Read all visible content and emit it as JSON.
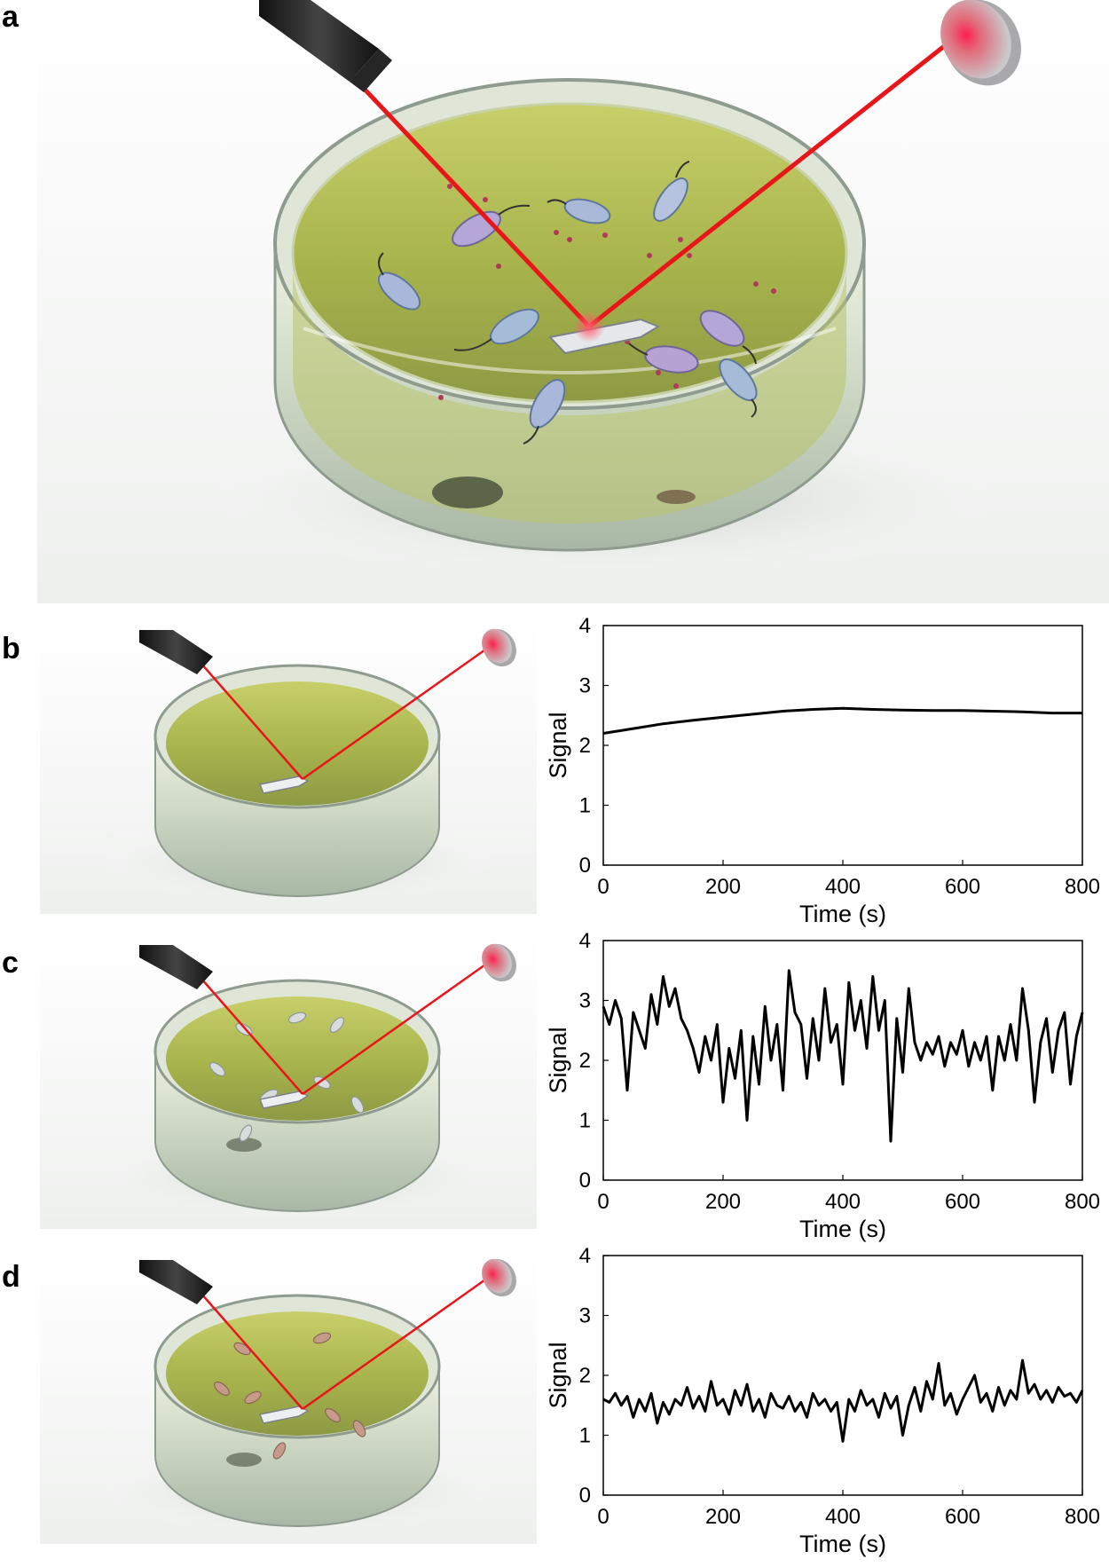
{
  "panels": {
    "a": "a",
    "b": "b",
    "c": "c",
    "d": "d"
  },
  "colors": {
    "laser": "#e8161b",
    "medium": "#b8c25a",
    "dish_glass": "#cfd8d4",
    "trace": "#000000"
  },
  "icons": {
    "laser_pointer": "laser-pointer-icon",
    "photodetector": "photodetector-disc-icon",
    "cantilever": "cantilever-chip-icon",
    "bacterium": "bacterium-icon"
  },
  "chart_data": [
    {
      "type": "line",
      "xlabel": "Time (s)",
      "ylabel": "Signal",
      "xlim": [
        0,
        800
      ],
      "ylim": [
        0,
        4
      ],
      "xticks": [
        "0",
        "200",
        "400",
        "600",
        "800"
      ],
      "yticks": [
        "0",
        "1",
        "2",
        "3",
        "4"
      ],
      "grid": false,
      "series": [
        {
          "x": [
            0,
            50,
            100,
            150,
            200,
            250,
            300,
            350,
            400,
            450,
            500,
            550,
            600,
            650,
            700,
            750,
            800
          ],
          "y": [
            2.2,
            2.28,
            2.36,
            2.42,
            2.47,
            2.52,
            2.57,
            2.6,
            2.62,
            2.6,
            2.59,
            2.58,
            2.58,
            2.57,
            2.56,
            2.54,
            2.54
          ]
        }
      ]
    },
    {
      "type": "line",
      "xlabel": "Time (s)",
      "ylabel": "Signal",
      "xlim": [
        0,
        800
      ],
      "ylim": [
        0,
        4
      ],
      "xticks": [
        "0",
        "200",
        "400",
        "600",
        "800"
      ],
      "yticks": [
        "0",
        "1",
        "2",
        "3",
        "4"
      ],
      "grid": false,
      "series": [
        {
          "x": [
            0,
            10,
            20,
            30,
            40,
            50,
            60,
            70,
            80,
            90,
            100,
            110,
            120,
            130,
            140,
            150,
            160,
            170,
            180,
            190,
            200,
            210,
            220,
            230,
            240,
            250,
            260,
            270,
            280,
            290,
            300,
            310,
            320,
            330,
            340,
            350,
            360,
            370,
            380,
            390,
            400,
            410,
            420,
            430,
            440,
            450,
            460,
            470,
            480,
            490,
            500,
            510,
            520,
            530,
            540,
            550,
            560,
            570,
            580,
            590,
            600,
            610,
            620,
            630,
            640,
            650,
            660,
            670,
            680,
            690,
            700,
            710,
            720,
            730,
            740,
            750,
            760,
            770,
            780,
            790,
            800
          ],
          "y": [
            2.9,
            2.6,
            3.0,
            2.7,
            1.5,
            2.8,
            2.5,
            2.2,
            3.1,
            2.6,
            3.4,
            2.9,
            3.2,
            2.7,
            2.5,
            2.2,
            1.8,
            2.4,
            2.0,
            2.6,
            1.3,
            2.2,
            1.7,
            2.5,
            1.0,
            2.4,
            1.6,
            2.9,
            2.0,
            2.6,
            1.5,
            3.5,
            2.8,
            2.6,
            1.7,
            2.7,
            2.0,
            3.2,
            2.3,
            2.6,
            1.6,
            3.3,
            2.5,
            3.0,
            2.2,
            3.4,
            2.5,
            3.0,
            0.65,
            2.7,
            1.8,
            3.2,
            2.3,
            2.0,
            2.3,
            2.1,
            2.4,
            1.9,
            2.3,
            2.1,
            2.5,
            1.9,
            2.3,
            2.0,
            2.4,
            1.5,
            2.4,
            2.0,
            2.6,
            2.0,
            3.2,
            2.5,
            1.3,
            2.3,
            2.7,
            1.8,
            2.5,
            2.8,
            1.6,
            2.4,
            2.8
          ]
        }
      ]
    },
    {
      "type": "line",
      "xlabel": "Time (s)",
      "ylabel": "Signal",
      "xlim": [
        0,
        800
      ],
      "ylim": [
        0,
        4
      ],
      "xticks": [
        "0",
        "200",
        "400",
        "600",
        "800"
      ],
      "yticks": [
        "0",
        "1",
        "2",
        "3",
        "4"
      ],
      "grid": false,
      "series": [
        {
          "x": [
            0,
            10,
            20,
            30,
            40,
            50,
            60,
            70,
            80,
            90,
            100,
            110,
            120,
            130,
            140,
            150,
            160,
            170,
            180,
            190,
            200,
            210,
            220,
            230,
            240,
            250,
            260,
            270,
            280,
            290,
            300,
            310,
            320,
            330,
            340,
            350,
            360,
            370,
            380,
            390,
            400,
            410,
            420,
            430,
            440,
            450,
            460,
            470,
            480,
            490,
            500,
            510,
            520,
            530,
            540,
            550,
            560,
            570,
            580,
            590,
            600,
            610,
            620,
            630,
            640,
            650,
            660,
            670,
            680,
            690,
            700,
            710,
            720,
            730,
            740,
            750,
            760,
            770,
            780,
            790,
            800
          ],
          "y": [
            1.6,
            1.55,
            1.7,
            1.5,
            1.65,
            1.3,
            1.6,
            1.4,
            1.7,
            1.2,
            1.55,
            1.35,
            1.6,
            1.5,
            1.8,
            1.45,
            1.65,
            1.4,
            1.9,
            1.5,
            1.6,
            1.35,
            1.75,
            1.5,
            1.85,
            1.4,
            1.6,
            1.3,
            1.7,
            1.5,
            1.45,
            1.65,
            1.4,
            1.55,
            1.3,
            1.7,
            1.5,
            1.6,
            1.4,
            1.55,
            0.9,
            1.6,
            1.4,
            1.75,
            1.5,
            1.6,
            1.3,
            1.7,
            1.45,
            1.65,
            1.0,
            1.5,
            1.8,
            1.4,
            1.9,
            1.6,
            2.2,
            1.5,
            1.7,
            1.35,
            1.6,
            1.8,
            2.0,
            1.55,
            1.7,
            1.4,
            1.8,
            1.5,
            1.75,
            1.6,
            2.25,
            1.7,
            1.85,
            1.6,
            1.75,
            1.55,
            1.8,
            1.65,
            1.7,
            1.55,
            1.75
          ]
        }
      ]
    }
  ]
}
